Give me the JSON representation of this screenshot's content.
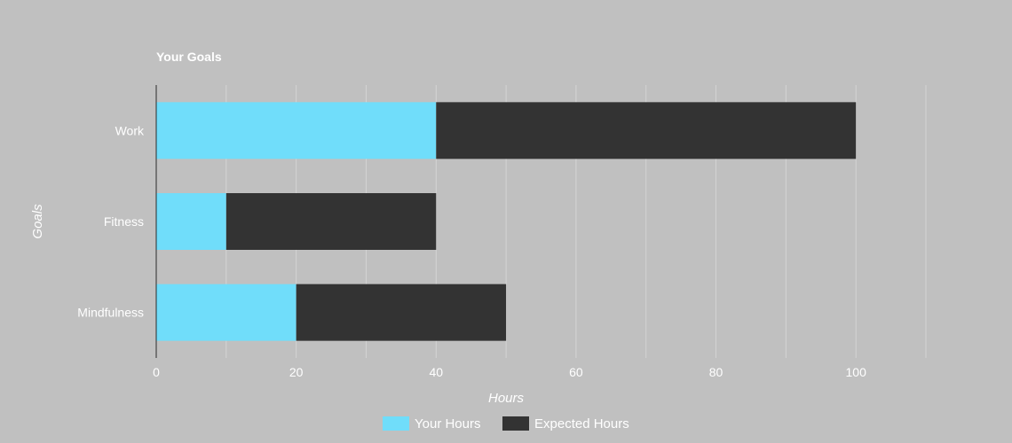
{
  "chart_data": {
    "type": "bar",
    "orientation": "horizontal",
    "stacked": true,
    "title": "Your Goals",
    "categories": [
      "Work",
      "Fitness",
      "Mindfulness"
    ],
    "series": [
      {
        "name": "Your Hours",
        "values": [
          40,
          10,
          20
        ],
        "color": "#70ddfa"
      },
      {
        "name": "Expected Hours",
        "values": [
          60,
          30,
          30
        ],
        "color": "#333333"
      }
    ],
    "xlabel": "Hours",
    "ylabel": "Goals",
    "xlim": [
      0,
      100
    ],
    "xticks": [
      0,
      20,
      40,
      60,
      80,
      100
    ],
    "grid": true,
    "legend_position": "bottom"
  },
  "colors": {
    "background": "#c0c0c0",
    "text": "#ffffff"
  }
}
